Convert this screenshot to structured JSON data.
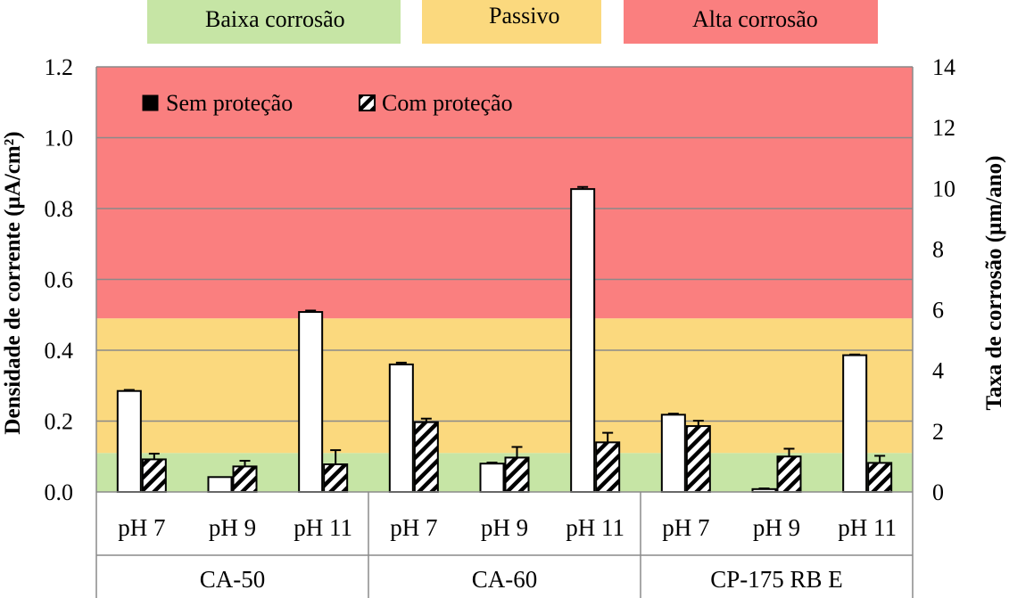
{
  "chart_data": {
    "type": "bar",
    "zones": [
      {
        "name": "Baixa corrosão",
        "color": "#c6e5a5",
        "range": [
          0.0,
          0.11
        ]
      },
      {
        "name": "Passivo",
        "color": "#fbd97e",
        "range": [
          0.11,
          0.49
        ]
      },
      {
        "name": "Alta corrosão",
        "color": "#fa7f7f",
        "range": [
          0.49,
          1.2
        ]
      }
    ],
    "y_left": {
      "label": "Densidade de corrente (µA/cm²)",
      "ylim": [
        0.0,
        1.2
      ],
      "ticks": [
        "0.0",
        "0.2",
        "0.4",
        "0.6",
        "0.8",
        "1.0",
        "1.2"
      ]
    },
    "y_right": {
      "label": "Taxa de corrosão (µm/ano)",
      "ylim": [
        0,
        14
      ],
      "ticks": [
        "0",
        "2",
        "4",
        "6",
        "8",
        "10",
        "12",
        "14"
      ]
    },
    "groups": [
      "CA-50",
      "CA-60",
      "CP-175 RB E"
    ],
    "subcategories": [
      "pH 7",
      "pH 9",
      "pH 11"
    ],
    "legend": [
      "Sem proteção",
      "Com proteção"
    ],
    "series": [
      {
        "name": "Sem proteção",
        "values": [
          0.285,
          0.042,
          0.508,
          0.36,
          0.08,
          0.855,
          0.218,
          0.008,
          0.386
        ],
        "errors": [
          0.003,
          0.0,
          0.004,
          0.005,
          0.003,
          0.006,
          0.003,
          0.002,
          0.002
        ]
      },
      {
        "name": "Com proteção",
        "values": [
          0.092,
          0.072,
          0.078,
          0.197,
          0.097,
          0.14,
          0.186,
          0.1,
          0.082
        ],
        "errors": [
          0.016,
          0.016,
          0.04,
          0.01,
          0.03,
          0.027,
          0.015,
          0.022,
          0.02
        ]
      }
    ]
  }
}
